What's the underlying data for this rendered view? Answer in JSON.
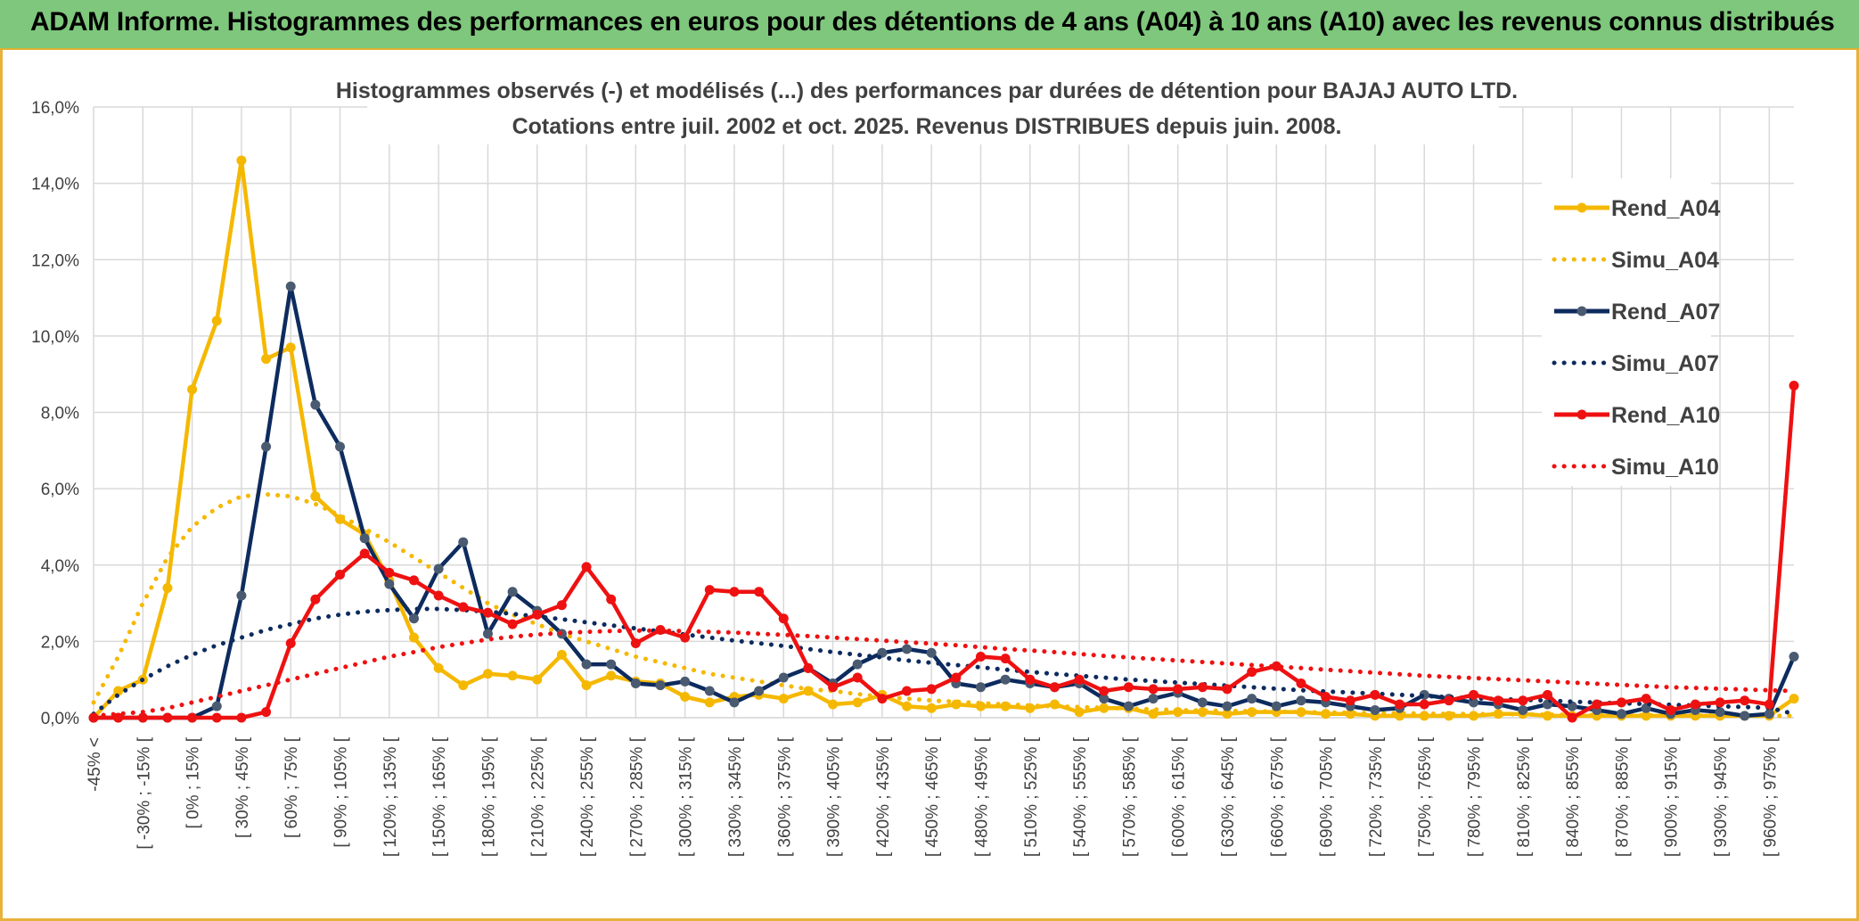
{
  "header": {
    "title": "ADAM Informe. Histogrammes des performances en euros pour des détentions de 4 ans (A04) à 10 ans (A10) avec les revenus connus distribués"
  },
  "chart_data": {
    "type": "line",
    "title": "Histogrammes observés (-) et modélisés (...) des performances par durées de détention pour BAJAJ AUTO LTD.",
    "subtitle": "Cotations entre juil. 2002 et oct. 2025. Revenus DISTRIBUES depuis juin. 2008.",
    "xlabel": "",
    "ylabel": "",
    "ylim": [
      0,
      16
    ],
    "y_ticks": [
      "0,0%",
      "2,0%",
      "4,0%",
      "6,0%",
      "8,0%",
      "10,0%",
      "12,0%",
      "14,0%",
      "16,0%"
    ],
    "grid": true,
    "legend_position": "right",
    "x_tick_labels": [
      "-45% <",
      "[ -30% ; -15% [",
      "[ 0% ; 15% [",
      "[ 30% ; 45% [",
      "[ 60% ; 75% [",
      "[ 90% ; 105% [",
      "[ 120% ; 135% [",
      "[ 150% ; 165% [",
      "[ 180% ; 195% [",
      "[ 210% ; 225% [",
      "[ 240% ; 255% [",
      "[ 270% ; 285% [",
      "[ 300% ; 315% [",
      "[ 330% ; 345% [",
      "[ 360% ; 375% [",
      "[ 390% ; 405% [",
      "[ 420% ; 435% [",
      "[ 450% ; 465% [",
      "[ 480% ; 495% [",
      "[ 510% ; 525% [",
      "[ 540% ; 555% [",
      "[ 570% ; 585% [",
      "[ 600% ; 615% [",
      "[ 630% ; 645% [",
      "[ 660% ; 675% [",
      "[ 690% ; 705% [",
      "[ 720% ; 735% [",
      "[ 750% ; 765% [",
      "[ 780% ; 795% [",
      "[ 810% ; 825% [",
      "[ 840% ; 855% [",
      "[ 870% ; 885% [",
      "[ 900% ; 915% [",
      "[ 930% ; 945% [",
      "[ 960% ; 975% ["
    ],
    "x_tick_index_step": 2,
    "n_bins": 70,
    "series": [
      {
        "name": "Rend_A04",
        "style": "solid",
        "markers": true,
        "color": "#f5b800",
        "values": [
          0,
          0.7,
          1.0,
          3.4,
          8.6,
          10.4,
          14.6,
          9.4,
          9.7,
          5.8,
          5.2,
          4.8,
          3.6,
          2.1,
          1.3,
          0.85,
          1.15,
          1.1,
          1.0,
          1.65,
          0.85,
          1.1,
          0.95,
          0.9,
          0.55,
          0.4,
          0.55,
          0.6,
          0.5,
          0.7,
          0.35,
          0.4,
          0.6,
          0.3,
          0.25,
          0.35,
          0.3,
          0.3,
          0.25,
          0.35,
          0.15,
          0.25,
          0.25,
          0.1,
          0.15,
          0.15,
          0.1,
          0.15,
          0.15,
          0.15,
          0.1,
          0.1,
          0.05,
          0.05,
          0.05,
          0.05,
          0.05,
          0.1,
          0.1,
          0.05,
          0.05,
          0.05,
          0.05,
          0.05,
          0.05,
          0.05,
          0.05,
          0.05,
          0.05,
          0.5
        ]
      },
      {
        "name": "Simu_A04",
        "style": "dotted",
        "markers": false,
        "color": "#f5b800",
        "values": [
          0.4,
          1.6,
          3.0,
          4.2,
          5.0,
          5.5,
          5.8,
          5.85,
          5.8,
          5.6,
          5.3,
          4.95,
          4.6,
          4.2,
          3.8,
          3.4,
          3.0,
          2.7,
          2.45,
          2.2,
          2.0,
          1.8,
          1.6,
          1.45,
          1.3,
          1.15,
          1.05,
          0.95,
          0.85,
          0.75,
          0.7,
          0.62,
          0.55,
          0.5,
          0.45,
          0.42,
          0.38,
          0.35,
          0.32,
          0.3,
          0.28,
          0.26,
          0.24,
          0.22,
          0.2,
          0.19,
          0.18,
          0.17,
          0.16,
          0.15,
          0.14,
          0.13,
          0.12,
          0.12,
          0.11,
          0.1,
          0.1,
          0.09,
          0.09,
          0.08,
          0.08,
          0.07,
          0.07,
          0.07,
          0.06,
          0.06,
          0.06,
          0.05,
          0.05,
          0.05
        ]
      },
      {
        "name": "Rend_A07",
        "style": "solid",
        "markers": true,
        "color": "#0d2b5e",
        "values": [
          0,
          0,
          0,
          0,
          0,
          0.3,
          3.2,
          7.1,
          11.3,
          8.2,
          7.1,
          4.7,
          3.5,
          2.6,
          3.9,
          4.6,
          2.2,
          3.3,
          2.8,
          2.2,
          1.4,
          1.4,
          0.9,
          0.85,
          0.95,
          0.7,
          0.4,
          0.7,
          1.05,
          1.3,
          0.9,
          1.4,
          1.7,
          1.8,
          1.7,
          0.9,
          0.8,
          1.0,
          0.9,
          0.8,
          0.9,
          0.5,
          0.3,
          0.5,
          0.65,
          0.4,
          0.3,
          0.5,
          0.3,
          0.45,
          0.4,
          0.3,
          0.2,
          0.25,
          0.6,
          0.5,
          0.4,
          0.35,
          0.2,
          0.35,
          0.3,
          0.2,
          0.1,
          0.25,
          0.1,
          0.2,
          0.15,
          0.05,
          0.1,
          1.6
        ]
      },
      {
        "name": "Simu_A07",
        "style": "dotted",
        "markers": false,
        "color": "#0d2b5e",
        "values": [
          0.1,
          0.6,
          1.0,
          1.35,
          1.65,
          1.9,
          2.1,
          2.3,
          2.45,
          2.6,
          2.7,
          2.78,
          2.82,
          2.85,
          2.85,
          2.82,
          2.78,
          2.72,
          2.65,
          2.58,
          2.5,
          2.42,
          2.34,
          2.26,
          2.18,
          2.1,
          2.02,
          1.95,
          1.88,
          1.8,
          1.72,
          1.65,
          1.58,
          1.5,
          1.44,
          1.38,
          1.32,
          1.26,
          1.2,
          1.15,
          1.1,
          1.05,
          1.0,
          0.96,
          0.92,
          0.88,
          0.84,
          0.8,
          0.76,
          0.72,
          0.69,
          0.66,
          0.63,
          0.6,
          0.57,
          0.54,
          0.51,
          0.49,
          0.47,
          0.45,
          0.42,
          0.4,
          0.38,
          0.36,
          0.34,
          0.32,
          0.3,
          0.28,
          0.26,
          0.1
        ]
      },
      {
        "name": "Rend_A10",
        "style": "solid",
        "markers": true,
        "color": "#ee1111",
        "values": [
          0,
          0,
          0,
          0,
          0,
          0,
          0,
          0.15,
          1.95,
          3.1,
          3.75,
          4.3,
          3.8,
          3.6,
          3.2,
          2.9,
          2.75,
          2.45,
          2.7,
          2.95,
          3.95,
          3.1,
          1.95,
          2.3,
          2.1,
          3.35,
          3.3,
          3.3,
          2.6,
          1.3,
          0.8,
          1.05,
          0.5,
          0.7,
          0.75,
          1.05,
          1.6,
          1.55,
          1.0,
          0.8,
          1.0,
          0.7,
          0.8,
          0.75,
          0.75,
          0.8,
          0.75,
          1.2,
          1.35,
          0.9,
          0.55,
          0.45,
          0.6,
          0.35,
          0.35,
          0.45,
          0.6,
          0.45,
          0.45,
          0.6,
          0.0,
          0.35,
          0.4,
          0.5,
          0.2,
          0.35,
          0.4,
          0.45,
          0.35,
          8.7
        ]
      },
      {
        "name": "Simu_A10",
        "style": "dotted",
        "markers": false,
        "color": "#ee1111",
        "values": [
          0.05,
          0.1,
          0.15,
          0.25,
          0.4,
          0.55,
          0.7,
          0.85,
          1.0,
          1.15,
          1.3,
          1.45,
          1.6,
          1.72,
          1.85,
          1.95,
          2.05,
          2.12,
          2.18,
          2.22,
          2.25,
          2.27,
          2.28,
          2.28,
          2.27,
          2.25,
          2.23,
          2.2,
          2.17,
          2.14,
          2.1,
          2.06,
          2.02,
          1.98,
          1.94,
          1.9,
          1.85,
          1.8,
          1.76,
          1.72,
          1.67,
          1.62,
          1.58,
          1.54,
          1.5,
          1.46,
          1.42,
          1.38,
          1.34,
          1.3,
          1.26,
          1.22,
          1.18,
          1.14,
          1.1,
          1.07,
          1.04,
          1.01,
          0.98,
          0.95,
          0.92,
          0.89,
          0.86,
          0.83,
          0.8,
          0.78,
          0.76,
          0.74,
          0.72,
          0.7
        ]
      }
    ]
  }
}
